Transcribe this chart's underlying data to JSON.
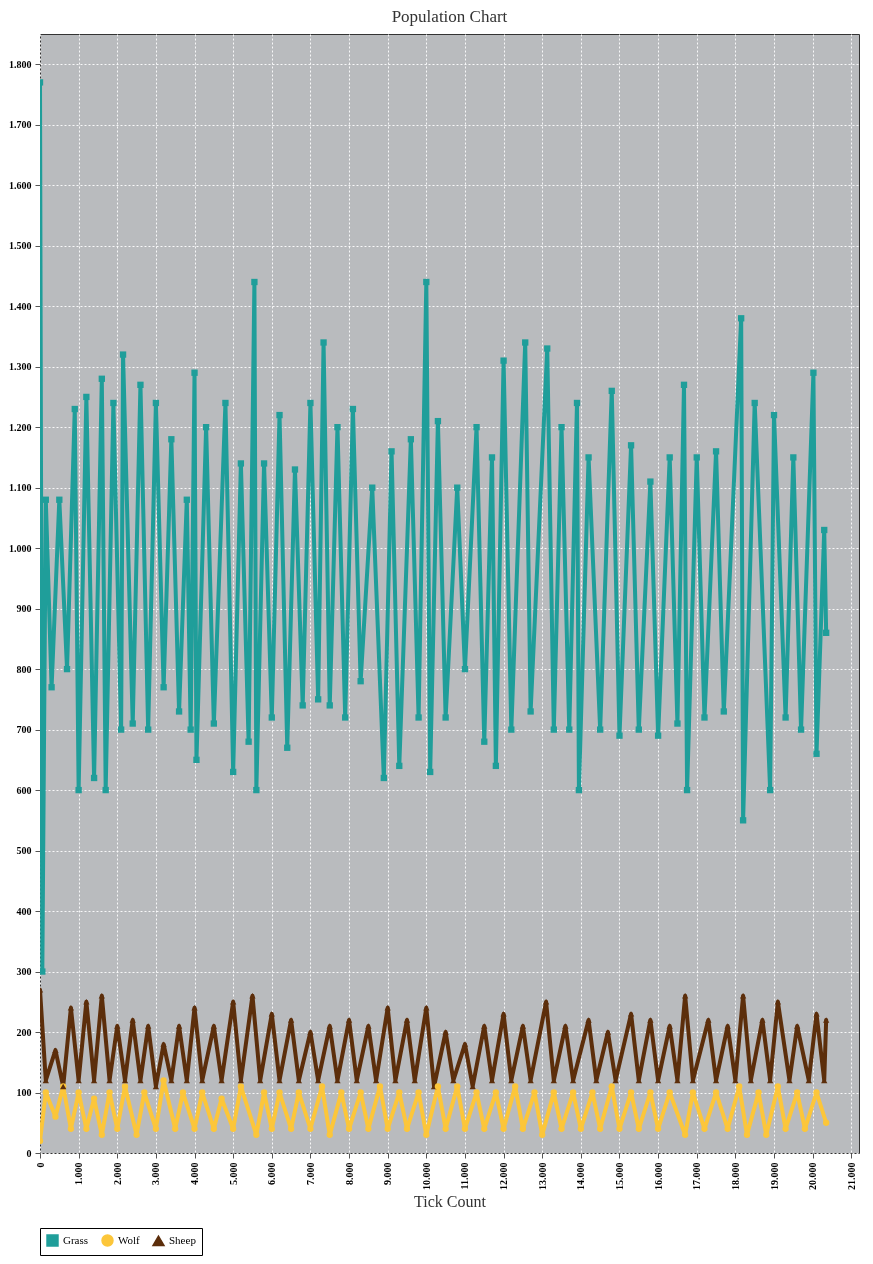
{
  "chart_data": {
    "type": "line",
    "title": "Population Chart",
    "xlabel": "Tick Count",
    "xlim": [
      0,
      21200
    ],
    "xticks": [
      0,
      {
        "value": 1000,
        "label": "1.000"
      },
      {
        "value": 2000,
        "label": "2.000"
      },
      {
        "value": 3000,
        "label": "3.000"
      },
      {
        "value": 4000,
        "label": "4.000"
      },
      {
        "value": 5000,
        "label": "5.000"
      },
      {
        "value": 6000,
        "label": "6.000"
      },
      {
        "value": 7000,
        "label": "7.000"
      },
      {
        "value": 8000,
        "label": "8.000"
      },
      {
        "value": 9000,
        "label": "9.000"
      },
      {
        "value": 10000,
        "label": "10.000"
      },
      {
        "value": 11000,
        "label": "11.000"
      },
      {
        "value": 12000,
        "label": "12.000"
      },
      {
        "value": 13000,
        "label": "13.000"
      },
      {
        "value": 14000,
        "label": "14.000"
      },
      {
        "value": 15000,
        "label": "15.000"
      },
      {
        "value": 16000,
        "label": "16.000"
      },
      {
        "value": 17000,
        "label": "17.000"
      },
      {
        "value": 18000,
        "label": "18.000"
      },
      {
        "value": 19000,
        "label": "19.000"
      },
      {
        "value": 20000,
        "label": "20.000"
      },
      {
        "value": 21000,
        "label": "21.000"
      }
    ],
    "ylim": [
      0,
      1850
    ],
    "yticks": [
      0,
      100,
      200,
      300,
      400,
      500,
      600,
      700,
      800,
      900,
      {
        "value": 1000,
        "label": "1.000"
      },
      {
        "value": 1100,
        "label": "1.100"
      },
      {
        "value": 1200,
        "label": "1.200"
      },
      {
        "value": 1300,
        "label": "1.300"
      },
      {
        "value": 1400,
        "label": "1.400"
      },
      {
        "value": 1500,
        "label": "1.500"
      },
      {
        "value": 1600,
        "label": "1.600"
      },
      {
        "value": 1700,
        "label": "1.700"
      },
      {
        "value": 1800,
        "label": "1.800"
      }
    ],
    "grid": true,
    "legend": "bottom",
    "line_style": "solid",
    "series": [
      {
        "name": "Grass",
        "color": "#1f9e9a",
        "marker": "square",
        "x": [
          0,
          60,
          150,
          300,
          500,
          700,
          900,
          1000,
          1200,
          1400,
          1600,
          1700,
          1900,
          2100,
          2150,
          2400,
          2600,
          2800,
          3000,
          3200,
          3400,
          3600,
          3800,
          3900,
          4000,
          4050,
          4300,
          4500,
          4800,
          5000,
          5200,
          5400,
          5550,
          5600,
          5800,
          6000,
          6200,
          6400,
          6600,
          6800,
          7000,
          7200,
          7340,
          7500,
          7700,
          7900,
          8100,
          8300,
          8600,
          8900,
          9100,
          9300,
          9600,
          9800,
          10000,
          10100,
          10300,
          10500,
          10800,
          11000,
          11300,
          11500,
          11700,
          11800,
          12000,
          12200,
          12560,
          12700,
          13130,
          13300,
          13500,
          13700,
          13900,
          13950,
          14200,
          14500,
          14800,
          15000,
          15300,
          15500,
          15800,
          16000,
          16300,
          16500,
          16670,
          16750,
          17000,
          17200,
          17500,
          17700,
          18150,
          18200,
          18500,
          18900,
          19000,
          19300,
          19500,
          19700,
          20020,
          20100,
          20300,
          20350
        ],
        "values": [
          1770,
          300,
          1080,
          770,
          1080,
          800,
          1230,
          600,
          1250,
          620,
          1280,
          600,
          1240,
          700,
          1320,
          710,
          1270,
          700,
          1240,
          770,
          1180,
          730,
          1080,
          700,
          1290,
          650,
          1200,
          710,
          1240,
          630,
          1140,
          680,
          1440,
          600,
          1140,
          720,
          1220,
          670,
          1130,
          740,
          1240,
          750,
          1340,
          740,
          1200,
          720,
          1230,
          780,
          1100,
          620,
          1160,
          640,
          1180,
          720,
          1440,
          630,
          1210,
          720,
          1100,
          800,
          1200,
          680,
          1150,
          640,
          1310,
          700,
          1340,
          730,
          1330,
          700,
          1200,
          700,
          1240,
          600,
          1150,
          700,
          1260,
          690,
          1170,
          700,
          1110,
          690,
          1150,
          710,
          1270,
          600,
          1150,
          720,
          1160,
          730,
          1380,
          550,
          1240,
          600,
          1220,
          720,
          1150,
          700,
          1290,
          660,
          1030,
          860
        ]
      },
      {
        "name": "Wolf",
        "color": "#fcc63a",
        "marker": "circle",
        "x": [
          0,
          150,
          400,
          600,
          800,
          1000,
          1200,
          1400,
          1600,
          1800,
          2000,
          2200,
          2500,
          2700,
          3000,
          3200,
          3500,
          3700,
          4000,
          4200,
          4500,
          4700,
          5000,
          5200,
          5600,
          5800,
          6000,
          6200,
          6500,
          6700,
          7000,
          7300,
          7500,
          7800,
          8000,
          8300,
          8500,
          8800,
          9000,
          9300,
          9500,
          9800,
          10000,
          10300,
          10500,
          10800,
          11000,
          11300,
          11500,
          11800,
          12000,
          12300,
          12500,
          12800,
          13000,
          13300,
          13500,
          13800,
          14000,
          14300,
          14500,
          14800,
          15000,
          15300,
          15500,
          15800,
          16000,
          16300,
          16700,
          16900,
          17200,
          17500,
          17800,
          18100,
          18300,
          18600,
          18800,
          19100,
          19300,
          19600,
          19800,
          20100,
          20350
        ],
        "values": [
          20,
          100,
          60,
          110,
          40,
          100,
          40,
          90,
          30,
          100,
          40,
          110,
          30,
          100,
          40,
          120,
          40,
          100,
          40,
          100,
          40,
          90,
          40,
          110,
          30,
          100,
          40,
          100,
          40,
          100,
          40,
          110,
          30,
          100,
          40,
          100,
          40,
          110,
          40,
          100,
          40,
          100,
          30,
          110,
          40,
          110,
          40,
          100,
          40,
          100,
          40,
          110,
          40,
          100,
          30,
          100,
          40,
          100,
          40,
          100,
          40,
          110,
          40,
          100,
          40,
          100,
          40,
          100,
          30,
          100,
          40,
          100,
          40,
          110,
          30,
          100,
          30,
          110,
          40,
          100,
          40,
          100,
          50
        ]
      },
      {
        "name": "Sheep",
        "color": "#5c2e0b",
        "marker": "triangle",
        "x": [
          0,
          150,
          400,
          600,
          800,
          1000,
          1200,
          1400,
          1600,
          1800,
          2000,
          2200,
          2400,
          2600,
          2800,
          3000,
          3200,
          3400,
          3600,
          3800,
          4000,
          4200,
          4500,
          4700,
          5000,
          5200,
          5500,
          5700,
          6000,
          6200,
          6500,
          6700,
          7000,
          7200,
          7500,
          7700,
          8000,
          8200,
          8500,
          8700,
          9000,
          9200,
          9500,
          9700,
          10000,
          10200,
          10500,
          10700,
          11000,
          11200,
          11500,
          11700,
          12000,
          12200,
          12500,
          12700,
          13100,
          13300,
          13600,
          13800,
          14200,
          14400,
          14700,
          14900,
          15300,
          15500,
          15800,
          16000,
          16300,
          16500,
          16700,
          16900,
          17300,
          17500,
          17800,
          18000,
          18200,
          18400,
          18700,
          18900,
          19100,
          19400,
          19600,
          19900,
          20100,
          20300,
          20350
        ],
        "values": [
          270,
          120,
          170,
          110,
          240,
          120,
          250,
          120,
          260,
          120,
          210,
          120,
          220,
          120,
          210,
          110,
          180,
          120,
          210,
          120,
          240,
          120,
          210,
          120,
          250,
          120,
          260,
          120,
          230,
          120,
          220,
          120,
          200,
          120,
          210,
          120,
          220,
          120,
          210,
          120,
          240,
          120,
          220,
          120,
          240,
          110,
          200,
          120,
          180,
          110,
          210,
          120,
          230,
          120,
          210,
          120,
          250,
          120,
          210,
          120,
          220,
          120,
          200,
          120,
          230,
          120,
          220,
          120,
          210,
          120,
          260,
          120,
          220,
          120,
          210,
          120,
          260,
          120,
          220,
          120,
          250,
          120,
          210,
          120,
          230,
          120,
          220
        ]
      }
    ]
  }
}
